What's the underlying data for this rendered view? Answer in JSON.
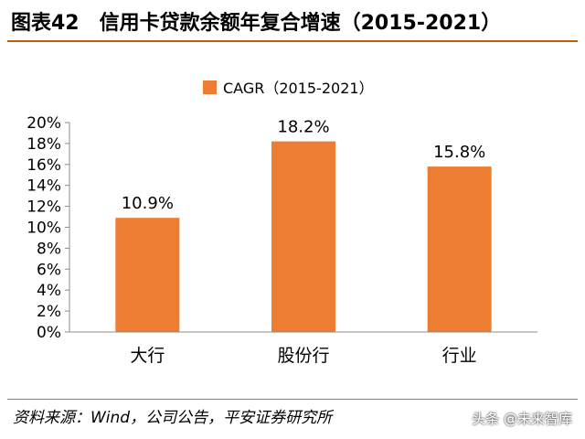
{
  "header": {
    "figure_number": "图表42",
    "title": "信用卡贷款余额年复合增速（2015-2021）"
  },
  "chart_data": {
    "type": "bar",
    "title": "",
    "xlabel": "",
    "ylabel": "",
    "categories": [
      "大行",
      "股份行",
      "行业"
    ],
    "series": [
      {
        "name": "CAGR（2015-2021）",
        "values": [
          10.9,
          18.2,
          15.8
        ],
        "value_labels": [
          "10.9%",
          "18.2%",
          "15.8%"
        ],
        "color": "#ed7d31"
      }
    ],
    "ylim": [
      0,
      20
    ],
    "yticks": [
      0,
      2,
      4,
      6,
      8,
      10,
      12,
      14,
      16,
      18,
      20
    ],
    "ytick_labels": [
      "0%",
      "2%",
      "4%",
      "6%",
      "8%",
      "10%",
      "12%",
      "14%",
      "16%",
      "18%",
      "20%"
    ],
    "grid": false,
    "legend": "top-center"
  },
  "footer": {
    "source": "资料来源：Wind，公司公告，平安证券研究所",
    "watermark": "头条 @未来智库"
  }
}
